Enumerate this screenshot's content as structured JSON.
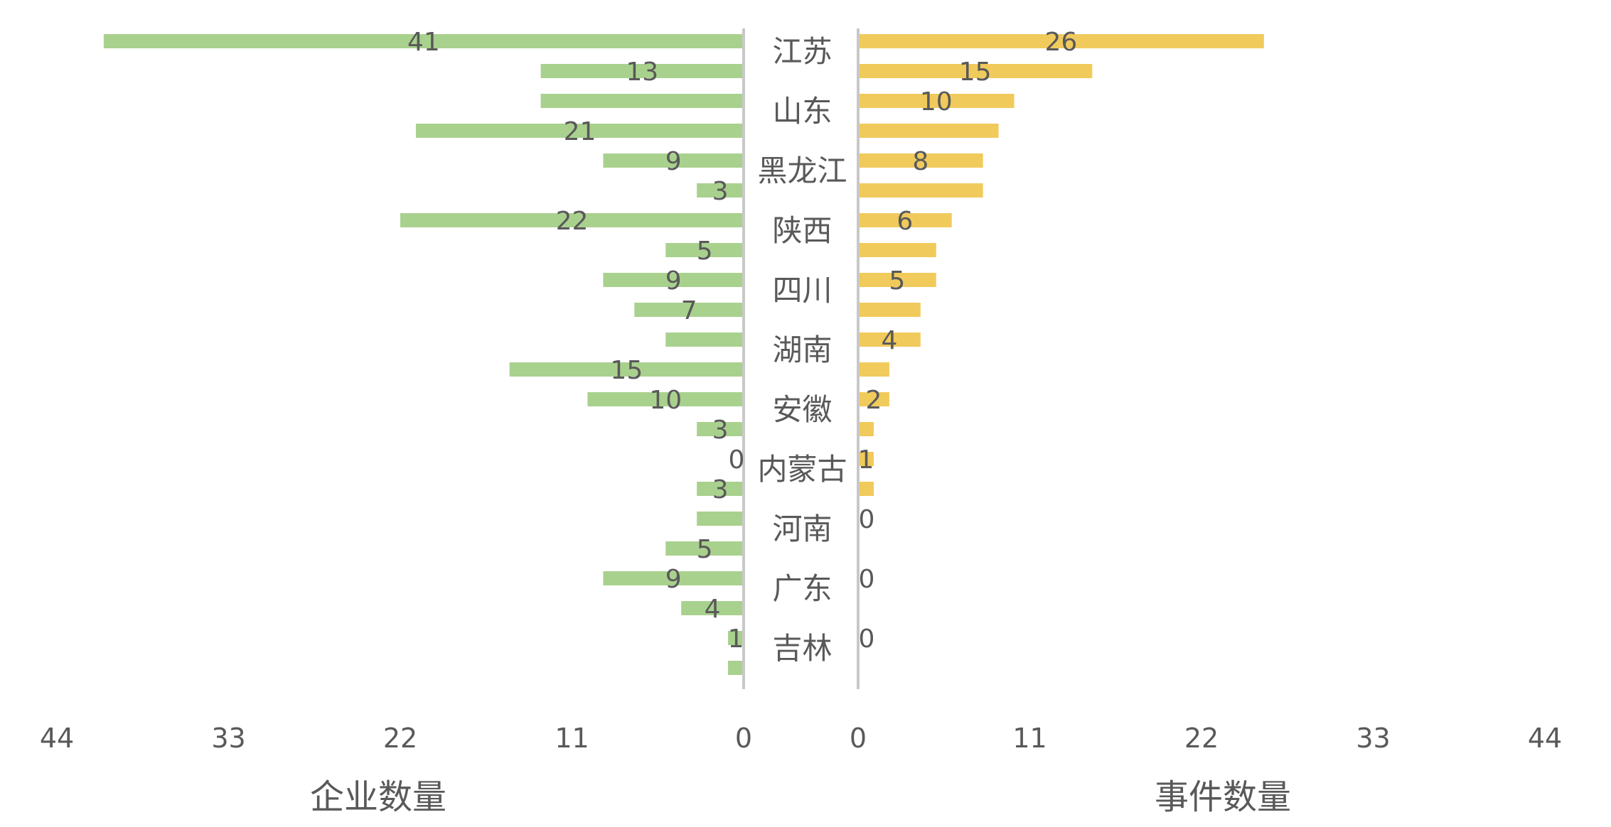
{
  "chart_data": {
    "type": "bar",
    "orientation": "horizontal-butterfly",
    "rows": 22,
    "category_labels": [
      "江苏",
      "山东",
      "黑龙江",
      "陕西",
      "四川",
      "湖南",
      "安徽",
      "内蒙古",
      "河南",
      "广东",
      "吉林"
    ],
    "series": [
      {
        "name": "企业数量",
        "side": "left",
        "color": "#a9d18e",
        "values": [
          41,
          13,
          13,
          21,
          9,
          3,
          22,
          5,
          9,
          7,
          5,
          15,
          10,
          3,
          0,
          3,
          3,
          5,
          9,
          4,
          1,
          1
        ],
        "data_labels": [
          "41",
          "13",
          "",
          "21",
          "9",
          "3",
          "22",
          "5",
          "9",
          "7",
          "",
          "15",
          "10",
          "3",
          "0",
          "3",
          "",
          "5",
          "9",
          "4",
          "1",
          ""
        ]
      },
      {
        "name": "事件数量",
        "side": "right",
        "color": "#f1ca5c",
        "values": [
          26,
          15,
          10,
          9,
          8,
          8,
          6,
          5,
          5,
          4,
          4,
          2,
          2,
          1,
          1,
          1,
          0,
          0,
          0,
          0,
          0,
          0
        ],
        "data_labels": [
          "26",
          "15",
          "10",
          "",
          "8",
          "",
          "6",
          "",
          "5",
          "",
          "4",
          "",
          "2",
          "",
          "1",
          "",
          "0",
          "",
          "0",
          "",
          "0",
          ""
        ]
      }
    ],
    "left_axis": {
      "title": "企业数量",
      "ticks": [
        "44",
        "33",
        "22",
        "11",
        "0"
      ],
      "range": [
        0,
        44
      ],
      "reversed": true
    },
    "right_axis": {
      "title": "事件数量",
      "ticks": [
        "0",
        "11",
        "22",
        "33",
        "44"
      ],
      "range": [
        0,
        44
      ]
    },
    "grid": false,
    "legend": "none"
  }
}
